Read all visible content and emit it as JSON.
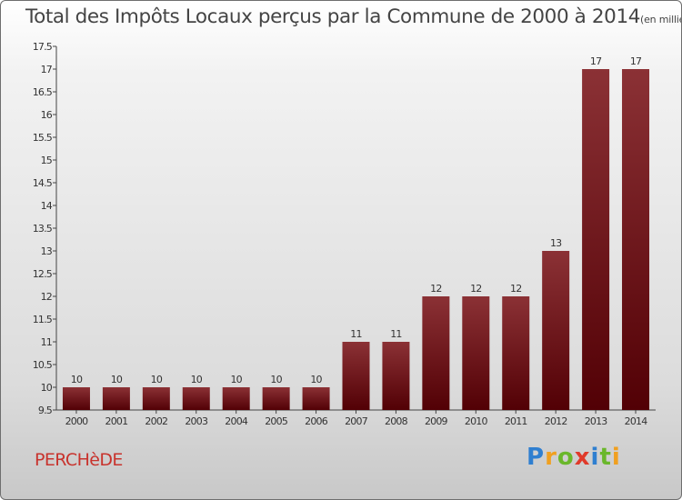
{
  "colors": {
    "bar_top": "#8b3135",
    "bar_bottom": "#520005",
    "commune": "#c8332d"
  },
  "commune": "PERCHèDE",
  "logo": {
    "letters": [
      "P",
      "r",
      "o",
      "x",
      "i",
      "t",
      "i"
    ],
    "colors": [
      "#2f7fd0",
      "#f0a020",
      "#6ab72b",
      "#e03a2a",
      "#2f7fd0",
      "#6ab72b",
      "#f0a020"
    ]
  },
  "chart_data": {
    "type": "bar",
    "title": "Total des Impôts Locaux perçus par la Commune de 2000 à 2014",
    "unit_note": "(en milliers d'€)",
    "categories": [
      "2000",
      "2001",
      "2002",
      "2003",
      "2004",
      "2005",
      "2006",
      "2007",
      "2008",
      "2009",
      "2010",
      "2011",
      "2012",
      "2013",
      "2014"
    ],
    "values": [
      10,
      10,
      10,
      10,
      10,
      10,
      10,
      11,
      11,
      12,
      12,
      12,
      13,
      17,
      17
    ],
    "ylim": [
      9.5,
      17.5
    ],
    "yticks": [
      9.5,
      10,
      10.5,
      11,
      11.5,
      12,
      12.5,
      13,
      13.5,
      14,
      14.5,
      15,
      15.5,
      16,
      16.5,
      17,
      17.5
    ],
    "grid": false,
    "xlabel": "",
    "ylabel": ""
  }
}
